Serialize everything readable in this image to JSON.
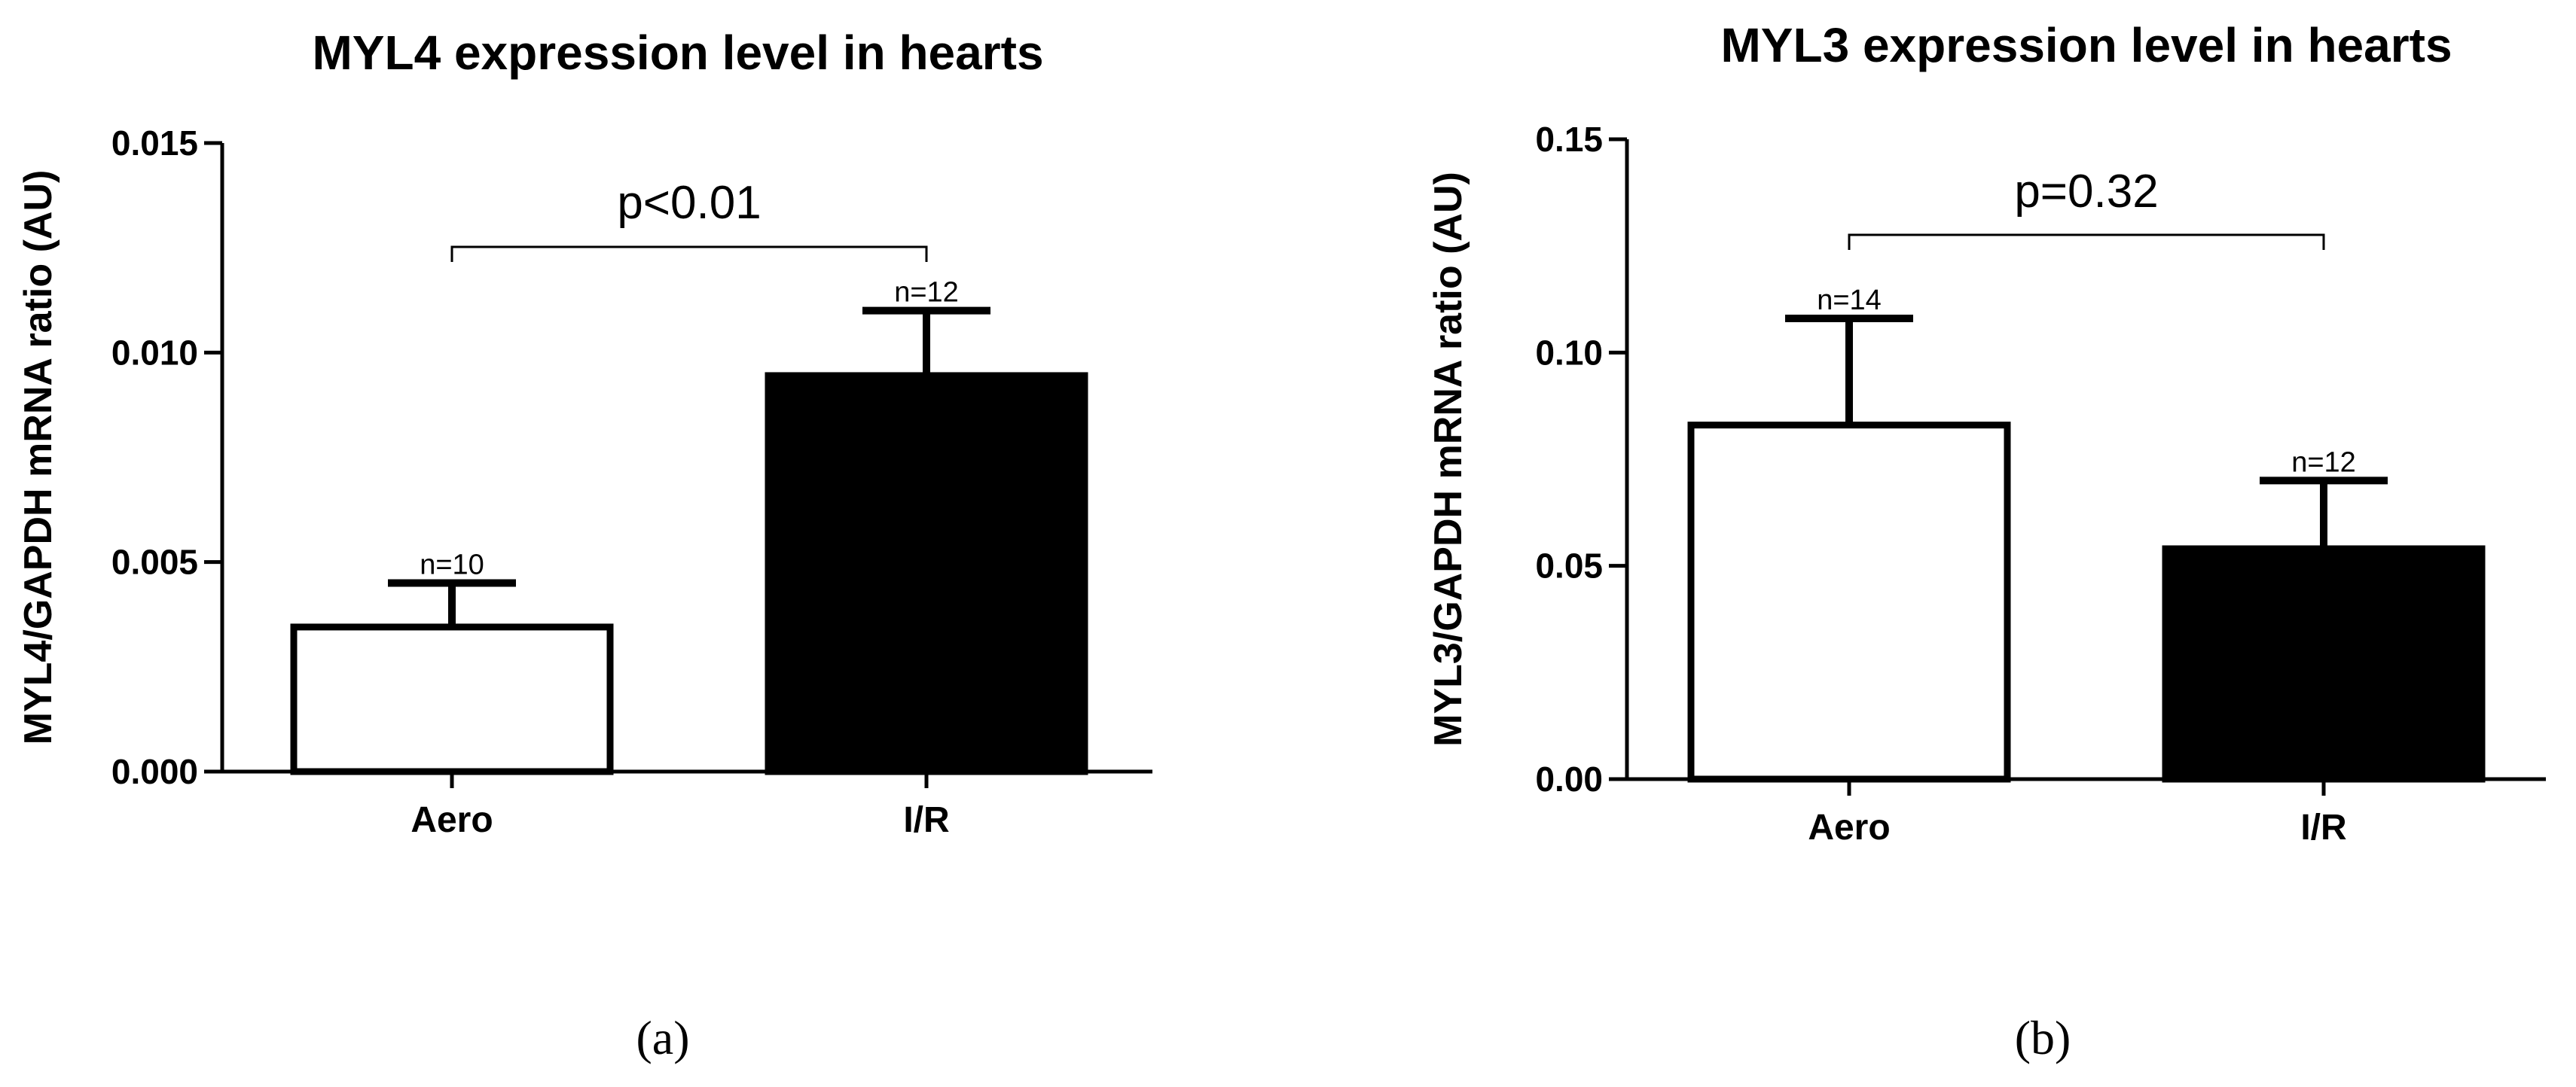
{
  "chart_data": [
    {
      "type": "bar",
      "title": "MYL4 expression level in hearts",
      "ylabel": "MYL4/GAPDH mRNA ratio (AU)",
      "xlabel": "",
      "categories": [
        "Aero",
        "I/R"
      ],
      "values": [
        0.00345,
        0.00945
      ],
      "errors": [
        0.00105,
        0.00155
      ],
      "n_labels": [
        "n=10",
        "n=12"
      ],
      "bar_colors": [
        "#ffffff",
        "#000000"
      ],
      "ylim": [
        0,
        0.015
      ],
      "yticks": [
        "0.000",
        "0.005",
        "0.010",
        "0.015"
      ],
      "significance": "p<0.01",
      "panel_label": "(a)",
      "grid": false
    },
    {
      "type": "bar",
      "title": "MYL3 expression level in hearts",
      "ylabel": "MYL3/GAPDH mRNA ratio (AU)",
      "xlabel": "",
      "categories": [
        "Aero",
        "I/R"
      ],
      "values": [
        0.083,
        0.054
      ],
      "errors": [
        0.025,
        0.016
      ],
      "n_labels": [
        "n=14",
        "n=12"
      ],
      "bar_colors": [
        "#ffffff",
        "#000000"
      ],
      "ylim": [
        0,
        0.15
      ],
      "yticks": [
        "0.00",
        "0.05",
        "0.10",
        "0.15"
      ],
      "significance": "p=0.32",
      "panel_label": "(b)",
      "grid": false
    }
  ]
}
